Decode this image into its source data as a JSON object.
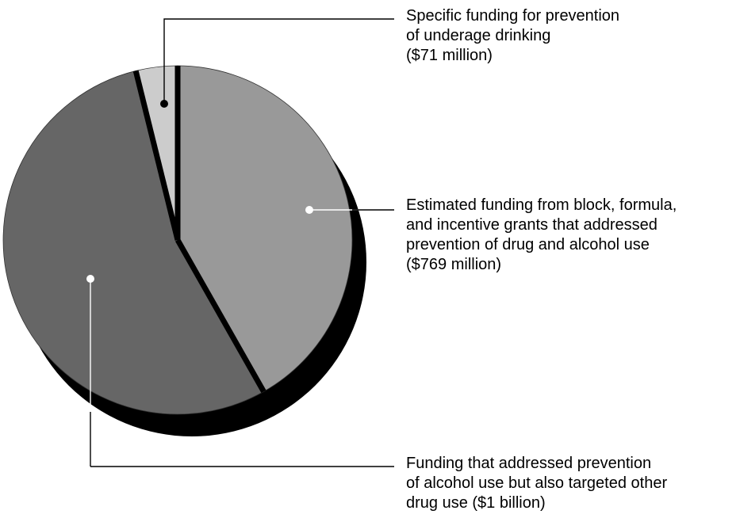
{
  "chart_data": {
    "type": "pie",
    "title": "",
    "slices": [
      {
        "lines": [
          "Specific funding for prevention",
          "of underage drinking",
          "($71 million)"
        ],
        "value": 71,
        "color": "#cccccc"
      },
      {
        "lines": [
          "Estimated funding from block, formula,",
          "and incentive grants that addressed",
          "prevention of drug and alcohol use",
          "($769 million)"
        ],
        "value": 769,
        "color": "#999999"
      },
      {
        "lines": [
          "Funding that addressed prevention",
          "of alcohol use but also targeted other",
          "drug use ($1 billion)"
        ],
        "value": 1000,
        "color": "#666666"
      }
    ],
    "colors": {
      "shadow": "#000000",
      "separator": "#000000",
      "leader_line": "#000000",
      "marker_on_dark": "#ffffff",
      "marker_on_light": "#000000"
    }
  }
}
